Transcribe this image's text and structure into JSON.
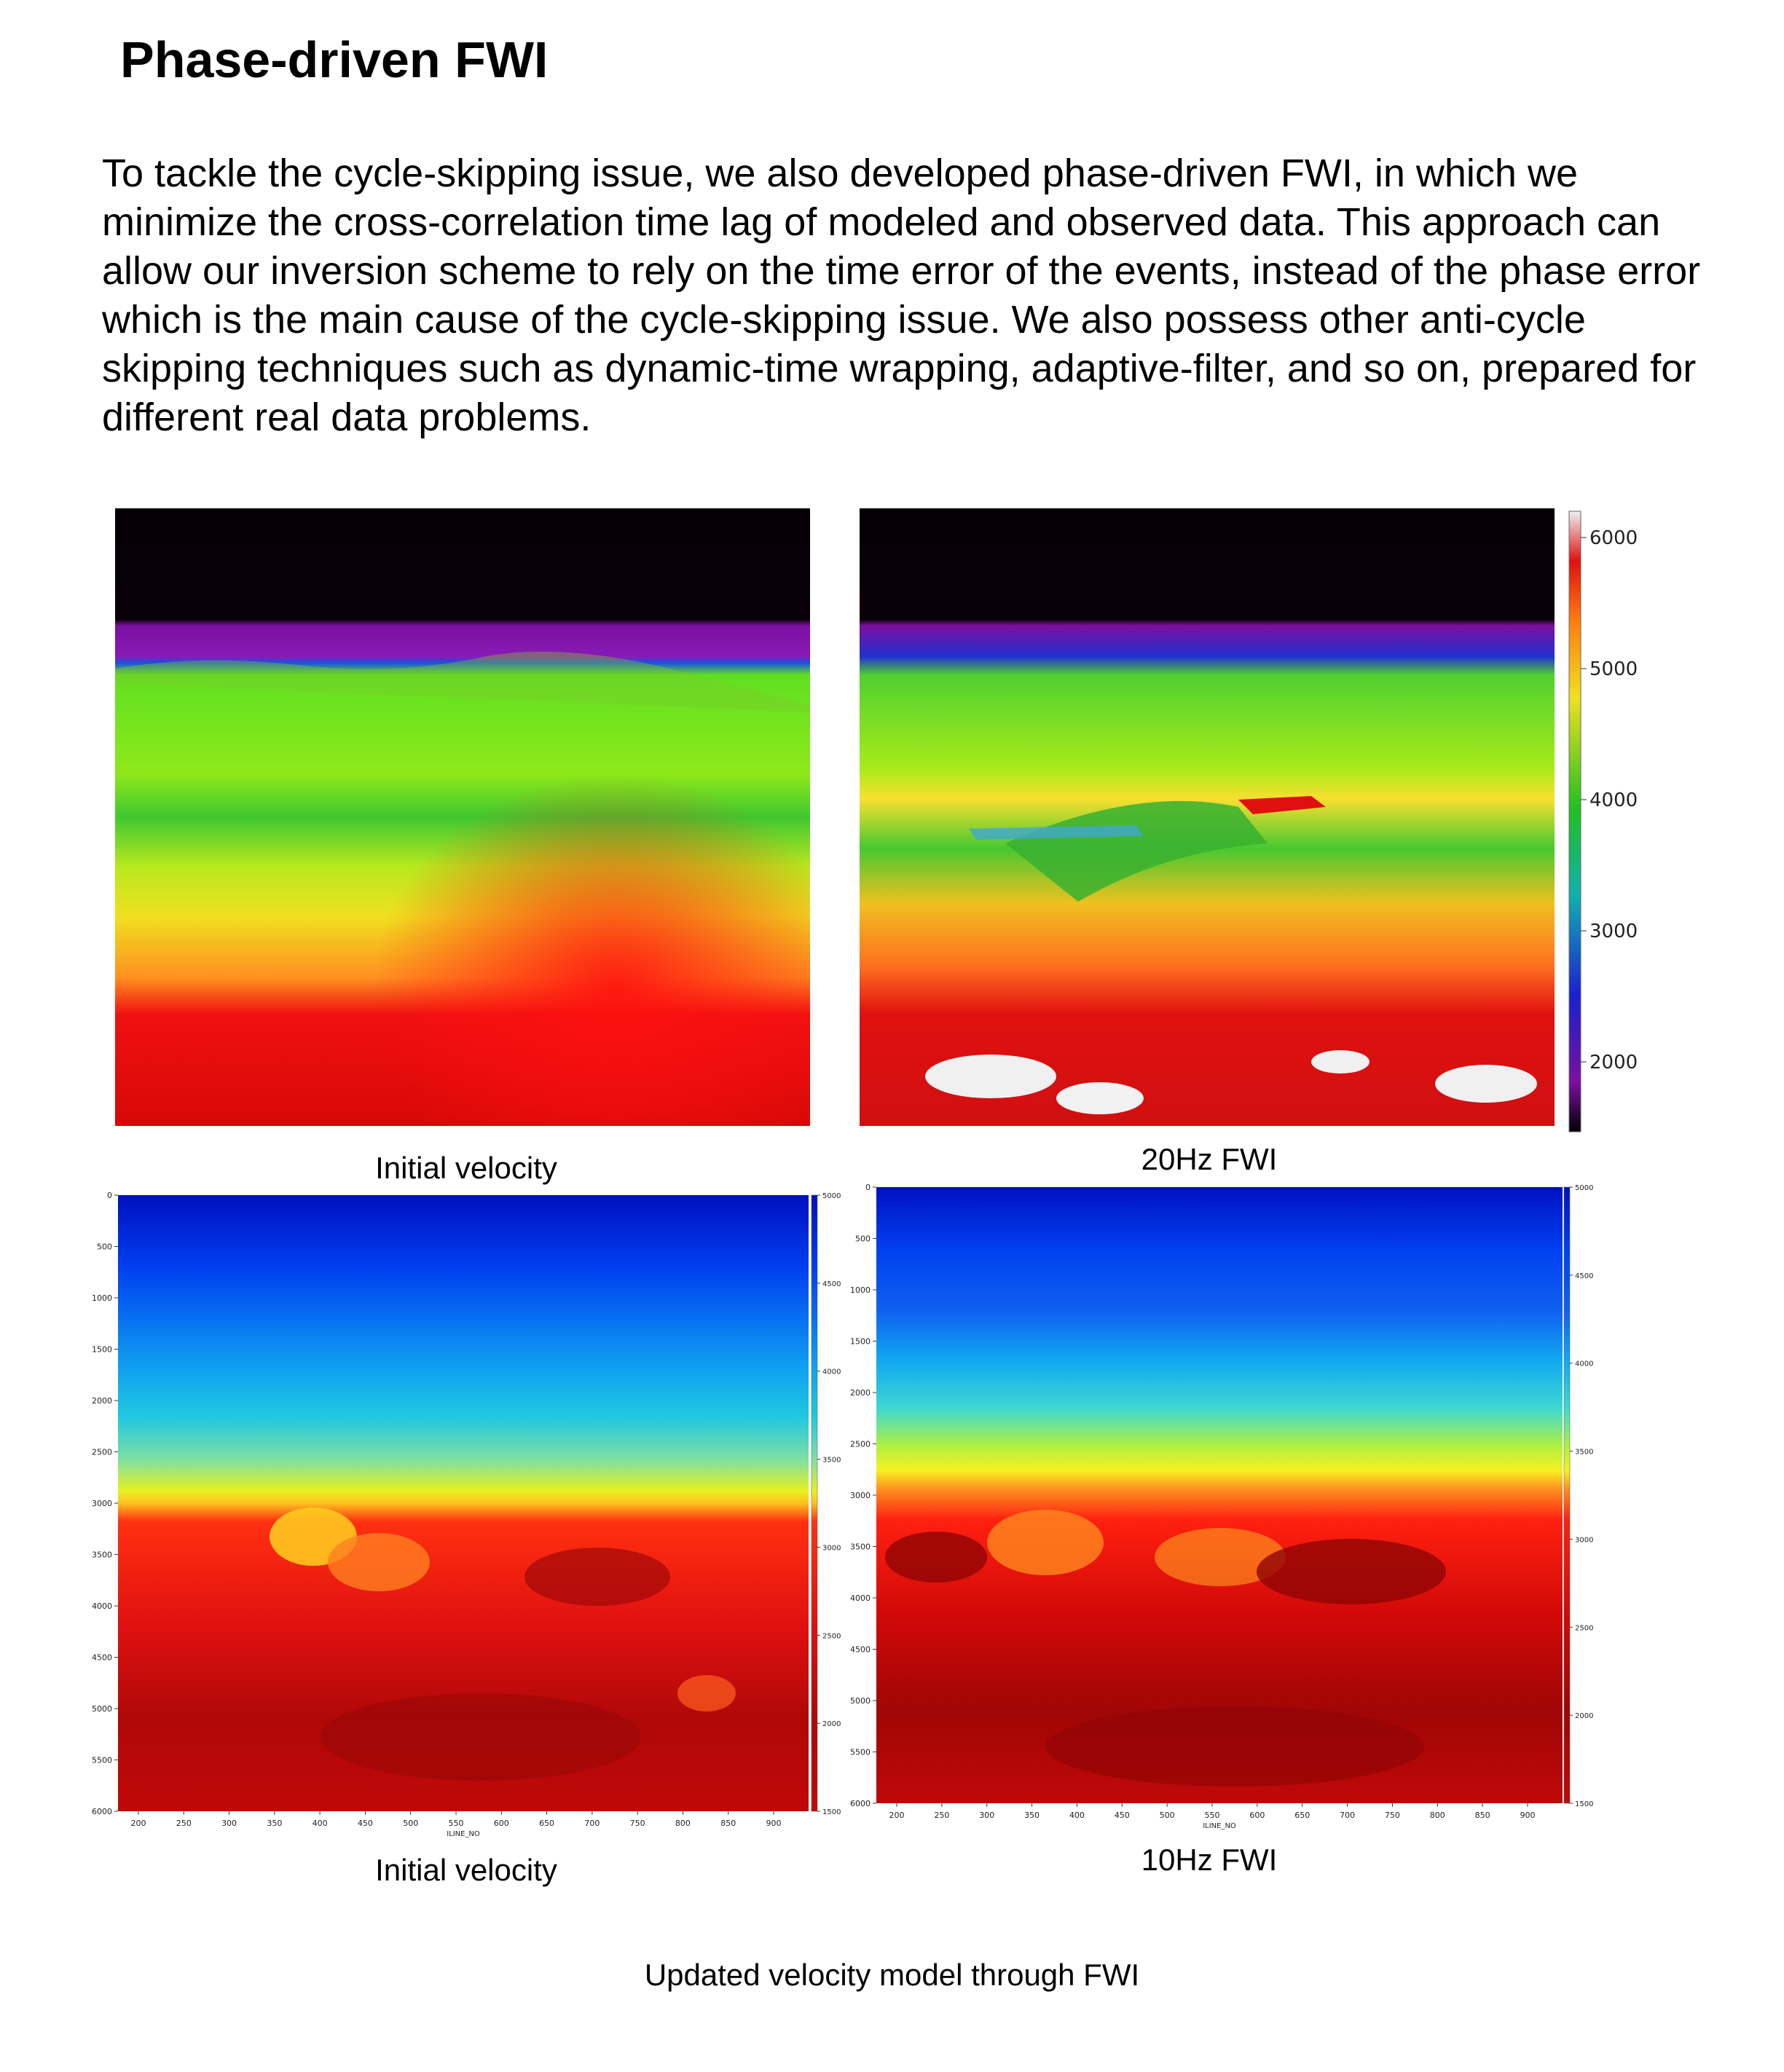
{
  "page": {
    "title": "Phase-driven FWI",
    "paragraph": "To tackle the cycle-skipping issue, we also developed phase-driven FWI, in which we minimize the cross-correlation time lag of modeled and observed data. This approach can allow our inversion scheme to rely on the time error of the events, instead of the phase error which is the main cause of the cycle-skipping issue. We also possess other anti-cycle skipping techniques such as dynamic-time wrapping, adaptive-filter, and so on, prepared for different real data problems.",
    "footer_caption": "Updated velocity model through FWI"
  },
  "panels": {
    "top_left_caption": "Initial velocity",
    "top_right_caption": "20Hz  FWI",
    "bottom_left_caption": "Initial velocity",
    "bottom_right_caption": "10Hz  FWI"
  },
  "colorbars": {
    "top": {
      "ticks": [
        "6000",
        "5000",
        "4000",
        "3000",
        "2000"
      ],
      "colormap": "purple-blue-green-yellow-red-white"
    },
    "bottom_left": {
      "ticks": [
        "5000",
        "4500",
        "4000",
        "3500",
        "3000",
        "2500",
        "2000",
        "1500"
      ],
      "colormap": "jet"
    },
    "bottom_right": {
      "ticks": [
        "5000",
        "4500",
        "4000",
        "3500",
        "3000",
        "2500",
        "2000",
        "1500"
      ],
      "colormap": "jet"
    }
  },
  "axes": {
    "depth_ticks": [
      "0",
      "500",
      "1000",
      "1500",
      "2000",
      "2500",
      "3000",
      "3500",
      "4000",
      "4500",
      "5000",
      "5500",
      "6000"
    ],
    "iline_ticks": [
      "200",
      "250",
      "300",
      "350",
      "400",
      "450",
      "500",
      "550",
      "600",
      "650",
      "700",
      "750",
      "800",
      "850",
      "900"
    ],
    "xlabel": "ILINE_NO"
  }
}
